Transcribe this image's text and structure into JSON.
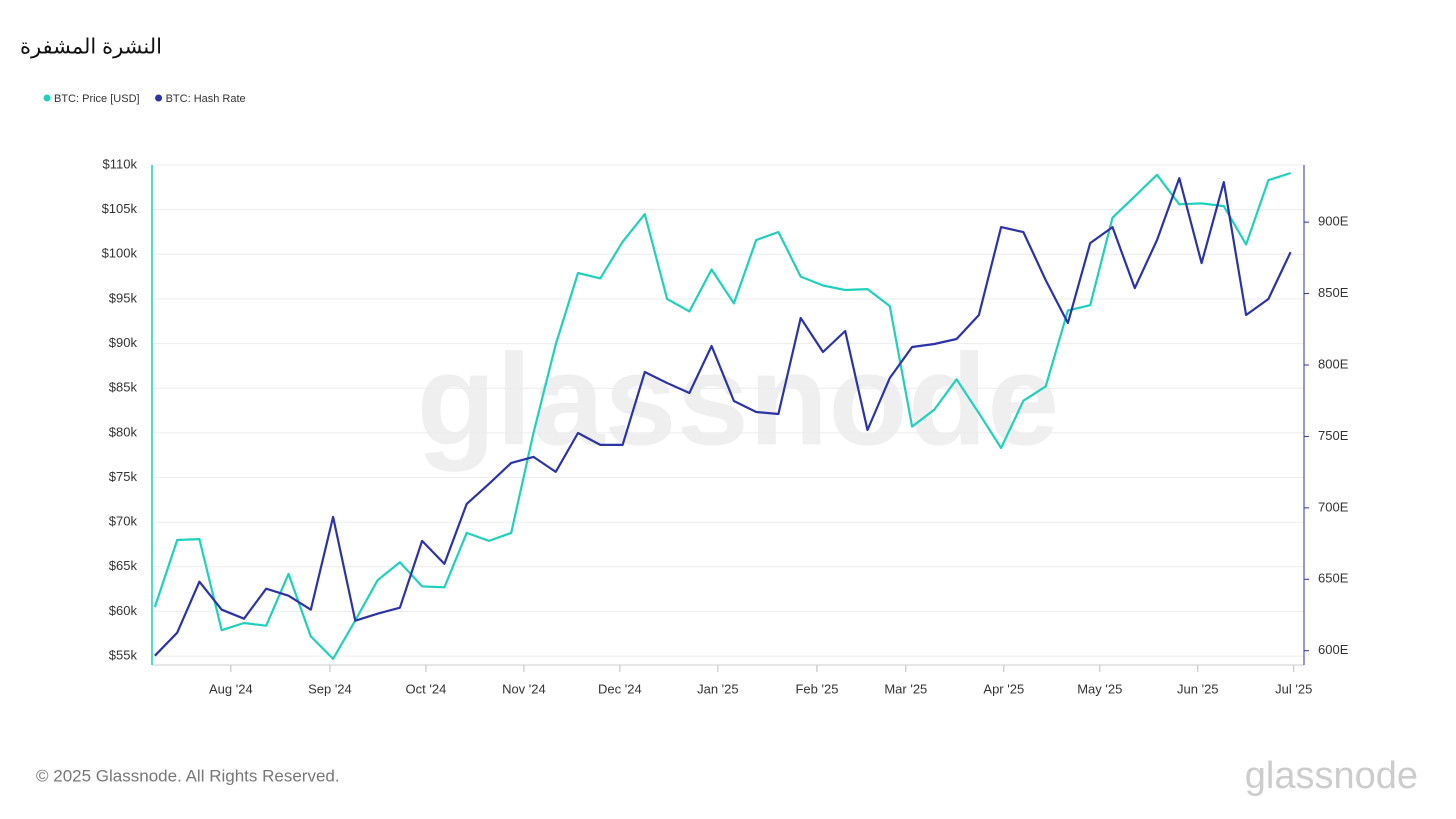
{
  "chart_data": {
    "type": "line",
    "title": "النشرة المشفرة",
    "watermark": "glassnode",
    "xlim": [
      -0.13,
      51.6
    ],
    "xticks": [
      {
        "value": 3.41,
        "label": "Aug '24"
      },
      {
        "value": 7.86,
        "label": "Sep '24"
      },
      {
        "value": 12.17,
        "label": "Oct '24"
      },
      {
        "value": 16.57,
        "label": "Nov '24"
      },
      {
        "value": 20.88,
        "label": "Dec '24"
      },
      {
        "value": 25.28,
        "label": "Jan '25"
      },
      {
        "value": 29.73,
        "label": "Feb '25"
      },
      {
        "value": 33.72,
        "label": "Mar '25"
      },
      {
        "value": 38.12,
        "label": "Apr '25"
      },
      {
        "value": 42.43,
        "label": "May '25"
      },
      {
        "value": 46.83,
        "label": "Jun '25"
      },
      {
        "value": 51.14,
        "label": "Jul '25"
      }
    ],
    "ylim": [
      54000,
      110000
    ],
    "yticks": [
      {
        "value": 55000,
        "label": "$55k"
      },
      {
        "value": 60000,
        "label": "$60k"
      },
      {
        "value": 65000,
        "label": "$65k"
      },
      {
        "value": 70000,
        "label": "$70k"
      },
      {
        "value": 75000,
        "label": "$75k"
      },
      {
        "value": 80000,
        "label": "$80k"
      },
      {
        "value": 85000,
        "label": "$85k"
      },
      {
        "value": 90000,
        "label": "$90k"
      },
      {
        "value": 95000,
        "label": "$95k"
      },
      {
        "value": 100000,
        "label": "$100k"
      },
      {
        "value": 105000,
        "label": "$105k"
      },
      {
        "value": 110000,
        "label": "$110k"
      }
    ],
    "y2lim": [
      590,
      940
    ],
    "y2ticks": [
      {
        "value": 600,
        "label": "600E"
      },
      {
        "value": 650,
        "label": "650E"
      },
      {
        "value": 700,
        "label": "700E"
      },
      {
        "value": 750,
        "label": "750E"
      },
      {
        "value": 800,
        "label": "800E"
      },
      {
        "value": 850,
        "label": "850E"
      },
      {
        "value": 900,
        "label": "900E"
      }
    ],
    "grid": true,
    "series": [
      {
        "name": "BTC: Price [USD]",
        "color": "#1fd1bd",
        "values": [
          60500,
          68000,
          68100,
          57900,
          58700,
          58400,
          64200,
          57200,
          54700,
          59000,
          63500,
          65500,
          62800,
          62700,
          68800,
          67900,
          68800,
          80000,
          89900,
          97900,
          97300,
          101400,
          104500,
          95000,
          93600,
          98300,
          94500,
          101600,
          102500,
          97500,
          96500,
          96000,
          96100,
          94200,
          80700,
          82600,
          86000,
          82200,
          78300,
          83600,
          85200,
          93700,
          94300,
          104100,
          106500,
          108900,
          105600,
          105700,
          105400,
          101100,
          108300,
          109100
        ]
      },
      {
        "name": "BTC: Hash Rate",
        "color": "#2b33a8",
        "axis": "y2",
        "values": [
          596.5,
          612.6,
          648.3,
          628.7,
          622.4,
          643.4,
          638.5,
          628.7,
          693.7,
          621.0,
          625.9,
          630.1,
          676.9,
          660.8,
          702.8,
          716.8,
          731.5,
          735.7,
          725.2,
          752.4,
          744.1,
          744.1,
          795.1,
          787.4,
          780.4,
          813.3,
          774.8,
          767.1,
          765.7,
          832.9,
          809.1,
          823.8,
          754.5,
          790.9,
          812.6,
          814.7,
          818.2,
          835.0,
          896.5,
          893.0,
          859.4,
          829.4,
          885.3,
          896.5,
          853.8,
          887.4,
          930.8,
          871.3,
          928.0,
          835.0,
          846.2,
          879.0
        ]
      }
    ]
  },
  "footer": {
    "copyright": "© 2025 Glassnode. All Rights Reserved.",
    "brand": "glassnode"
  }
}
